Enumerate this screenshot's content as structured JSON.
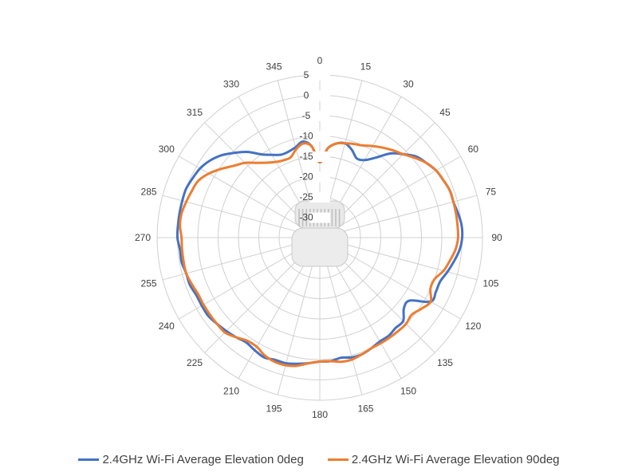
{
  "chart_data": {
    "type": "line",
    "polar": true,
    "angle_labels": [
      "0",
      "15",
      "30",
      "45",
      "60",
      "75",
      "90",
      "105",
      "120",
      "135",
      "150",
      "165",
      "180",
      "195",
      "210",
      "225",
      "240",
      "255",
      "270",
      "285",
      "300",
      "315",
      "330",
      "345"
    ],
    "radial_labels": [
      "5",
      "0",
      "-5",
      "-10",
      "-15",
      "-20",
      "-25",
      "-30"
    ],
    "rlim": [
      -35,
      5
    ],
    "grid": true,
    "legend_position": "bottom",
    "series": [
      {
        "name": "2.4GHz Wi-Fi Average Elevation 0deg",
        "color": "#4472C4",
        "angles": [
          0,
          5,
          10,
          15,
          20,
          25,
          30,
          35,
          40,
          45,
          50,
          55,
          60,
          65,
          70,
          75,
          80,
          85,
          90,
          95,
          100,
          105,
          110,
          115,
          120,
          125,
          130,
          135,
          140,
          145,
          150,
          155,
          160,
          165,
          170,
          175,
          180,
          185,
          190,
          195,
          200,
          205,
          210,
          215,
          220,
          225,
          230,
          235,
          240,
          245,
          250,
          255,
          260,
          265,
          270,
          275,
          280,
          285,
          290,
          295,
          300,
          305,
          310,
          315,
          320,
          325,
          330,
          335,
          340,
          345,
          350,
          355
        ],
        "values": [
          -16.5,
          -13,
          -11.5,
          -11,
          -12,
          -13.5,
          -13,
          -11,
          -8,
          -6,
          -4,
          -3,
          -2,
          -1.5,
          -1,
          -1,
          -0.5,
          0,
          0,
          -0.5,
          -1.5,
          -2.5,
          -3.5,
          -3.5,
          -3.5,
          -8,
          -8,
          -6,
          -6,
          -5.5,
          -5.5,
          -5,
          -4.5,
          -4.5,
          -5,
          -4.5,
          -4.5,
          -4,
          -3.5,
          -3,
          -3,
          -2.5,
          -3,
          -3.5,
          -3,
          -2.5,
          -2,
          -1.5,
          -1.5,
          -1.5,
          -1,
          -1,
          -0.5,
          -0.5,
          0,
          0,
          0,
          0,
          0,
          -0.5,
          -1,
          -2,
          -3.5,
          -5.5,
          -7.5,
          -10,
          -11.5,
          -12.5,
          -12.5,
          -12,
          -11,
          -12.5
        ]
      },
      {
        "name": "2.4GHz Wi-Fi Average Elevation 90deg",
        "color": "#ED7D31",
        "angles": [
          0,
          5,
          10,
          15,
          20,
          25,
          30,
          35,
          40,
          45,
          50,
          55,
          60,
          65,
          70,
          75,
          80,
          85,
          90,
          95,
          100,
          105,
          110,
          115,
          120,
          125,
          130,
          135,
          140,
          145,
          150,
          155,
          160,
          165,
          170,
          175,
          180,
          185,
          190,
          195,
          200,
          205,
          210,
          215,
          220,
          225,
          230,
          235,
          240,
          245,
          250,
          255,
          260,
          265,
          270,
          275,
          280,
          285,
          290,
          295,
          300,
          305,
          310,
          315,
          320,
          325,
          330,
          335,
          340,
          345,
          350,
          355
        ],
        "values": [
          -16.5,
          -13,
          -11.5,
          -11,
          -10.5,
          -10,
          -9,
          -8,
          -7,
          -6,
          -4.5,
          -3,
          -2,
          -1.5,
          -1,
          -1,
          -1,
          -1,
          -1,
          -1.5,
          -2.5,
          -3.5,
          -5,
          -5,
          -3.5,
          -4.5,
          -5.5,
          -5,
          -5,
          -5,
          -5,
          -5,
          -4.5,
          -4,
          -4,
          -4.5,
          -4.5,
          -4,
          -3,
          -2.5,
          -2.5,
          -3,
          -4,
          -4,
          -3,
          -2,
          -2,
          -2,
          -2,
          -2,
          -1.5,
          -1,
          -1,
          -1,
          -1,
          -0.5,
          -0.5,
          -1,
          -1.5,
          -2,
          -3.5,
          -5.5,
          -7.5,
          -9,
          -11,
          -12.5,
          -13.5,
          -14,
          -14,
          -12.5,
          -11.5,
          -12.5
        ]
      }
    ]
  }
}
